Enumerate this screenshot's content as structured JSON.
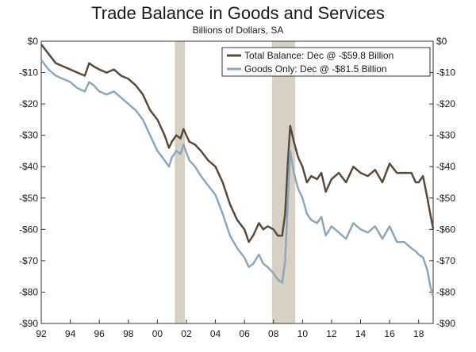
{
  "chart_data": {
    "type": "line",
    "title": "Trade Balance in Goods and Services",
    "subtitle": "Billions of Dollars, SA",
    "xlabel": "",
    "ylabel": "",
    "xlim": [
      1992,
      2019
    ],
    "ylim": [
      -90,
      0
    ],
    "y_ticks": [
      0,
      -10,
      -20,
      -30,
      -40,
      -50,
      -60,
      -70,
      -80,
      -90
    ],
    "y_tick_labels": [
      "$0",
      "-$10",
      "-$20",
      "-$30",
      "-$40",
      "-$50",
      "-$60",
      "-$70",
      "-$80",
      "-$90"
    ],
    "x_ticks": [
      1992,
      1994,
      1996,
      1998,
      2000,
      2002,
      2004,
      2006,
      2008,
      2010,
      2012,
      2014,
      2016,
      2018
    ],
    "x_tick_labels": [
      "92",
      "94",
      "96",
      "98",
      "00",
      "02",
      "04",
      "06",
      "08",
      "10",
      "12",
      "14",
      "16",
      "18"
    ],
    "recessions": [
      [
        2001.2,
        2001.9
      ],
      [
        2007.9,
        2009.5
      ]
    ],
    "legend_position": "top-right",
    "series": [
      {
        "name": "Total Balance: Dec @ -$59.8 Billion",
        "color": "#5a4a3c",
        "x": [
          1992.0,
          1992.5,
          1993.0,
          1993.5,
          1994.0,
          1994.5,
          1995.0,
          1995.3,
          1995.6,
          1996.0,
          1996.5,
          1997.0,
          1997.5,
          1998.0,
          1998.5,
          1999.0,
          1999.5,
          2000.0,
          2000.5,
          2000.8,
          2001.0,
          2001.3,
          2001.6,
          2001.8,
          2002.2,
          2002.6,
          2003.0,
          2003.5,
          2004.0,
          2004.5,
          2005.0,
          2005.5,
          2006.0,
          2006.3,
          2006.6,
          2007.0,
          2007.3,
          2007.6,
          2008.0,
          2008.3,
          2008.6,
          2008.8,
          2009.0,
          2009.15,
          2009.4,
          2009.7,
          2010.0,
          2010.3,
          2010.6,
          2011.0,
          2011.3,
          2011.6,
          2012.0,
          2012.5,
          2013.0,
          2013.5,
          2014.0,
          2014.5,
          2015.0,
          2015.5,
          2016.0,
          2016.5,
          2017.0,
          2017.5,
          2017.8,
          2018.0,
          2018.3,
          2018.6,
          2018.8,
          2019.0
        ],
        "values": [
          -1,
          -4,
          -7,
          -8,
          -9,
          -10,
          -11,
          -7,
          -8,
          -9,
          -10,
          -9,
          -11,
          -12,
          -14,
          -17,
          -22,
          -25,
          -30,
          -34,
          -32,
          -30,
          -31,
          -28,
          -32,
          -33,
          -35,
          -38,
          -40,
          -45,
          -52,
          -57,
          -60,
          -64,
          -62,
          -58,
          -60,
          -59,
          -60,
          -62,
          -62,
          -55,
          -38,
          -27,
          -32,
          -37,
          -40,
          -45,
          -43,
          -44,
          -42,
          -48,
          -44,
          -42,
          -45,
          -40,
          -42,
          -43,
          -41,
          -45,
          -39,
          -42,
          -42,
          -42,
          -45,
          -45,
          -43,
          -50,
          -55,
          -59.8
        ]
      },
      {
        "name": "Goods Only: Dec @ -$81.5 Billion",
        "color": "#8ea7bb",
        "x": [
          1992.0,
          1992.5,
          1993.0,
          1993.5,
          1994.0,
          1994.5,
          1995.0,
          1995.3,
          1995.6,
          1996.0,
          1996.5,
          1997.0,
          1997.5,
          1998.0,
          1998.5,
          1999.0,
          1999.5,
          2000.0,
          2000.5,
          2000.8,
          2001.0,
          2001.3,
          2001.6,
          2001.8,
          2002.2,
          2002.6,
          2003.0,
          2003.5,
          2004.0,
          2004.5,
          2005.0,
          2005.5,
          2006.0,
          2006.3,
          2006.6,
          2007.0,
          2007.3,
          2007.6,
          2008.0,
          2008.3,
          2008.6,
          2008.8,
          2009.0,
          2009.15,
          2009.4,
          2009.7,
          2010.0,
          2010.3,
          2010.6,
          2011.0,
          2011.3,
          2011.6,
          2012.0,
          2012.5,
          2013.0,
          2013.5,
          2014.0,
          2014.5,
          2015.0,
          2015.5,
          2016.0,
          2016.5,
          2017.0,
          2017.5,
          2017.8,
          2018.0,
          2018.3,
          2018.6,
          2018.8,
          2019.0
        ],
        "values": [
          -6,
          -9,
          -11,
          -12,
          -13,
          -15,
          -16,
          -13,
          -14,
          -16,
          -17,
          -16,
          -18,
          -20,
          -22,
          -25,
          -30,
          -35,
          -38,
          -40,
          -37,
          -35,
          -36,
          -33,
          -38,
          -40,
          -43,
          -46,
          -49,
          -55,
          -62,
          -66,
          -69,
          -72,
          -71,
          -68,
          -71,
          -72,
          -74,
          -76,
          -77,
          -70,
          -50,
          -35,
          -42,
          -47,
          -50,
          -55,
          -57,
          -58,
          -56,
          -62,
          -59,
          -61,
          -63,
          -58,
          -60,
          -61,
          -59,
          -63,
          -59,
          -64,
          -64,
          -66,
          -67,
          -68,
          -69,
          -73,
          -78,
          -81.5
        ]
      }
    ]
  }
}
